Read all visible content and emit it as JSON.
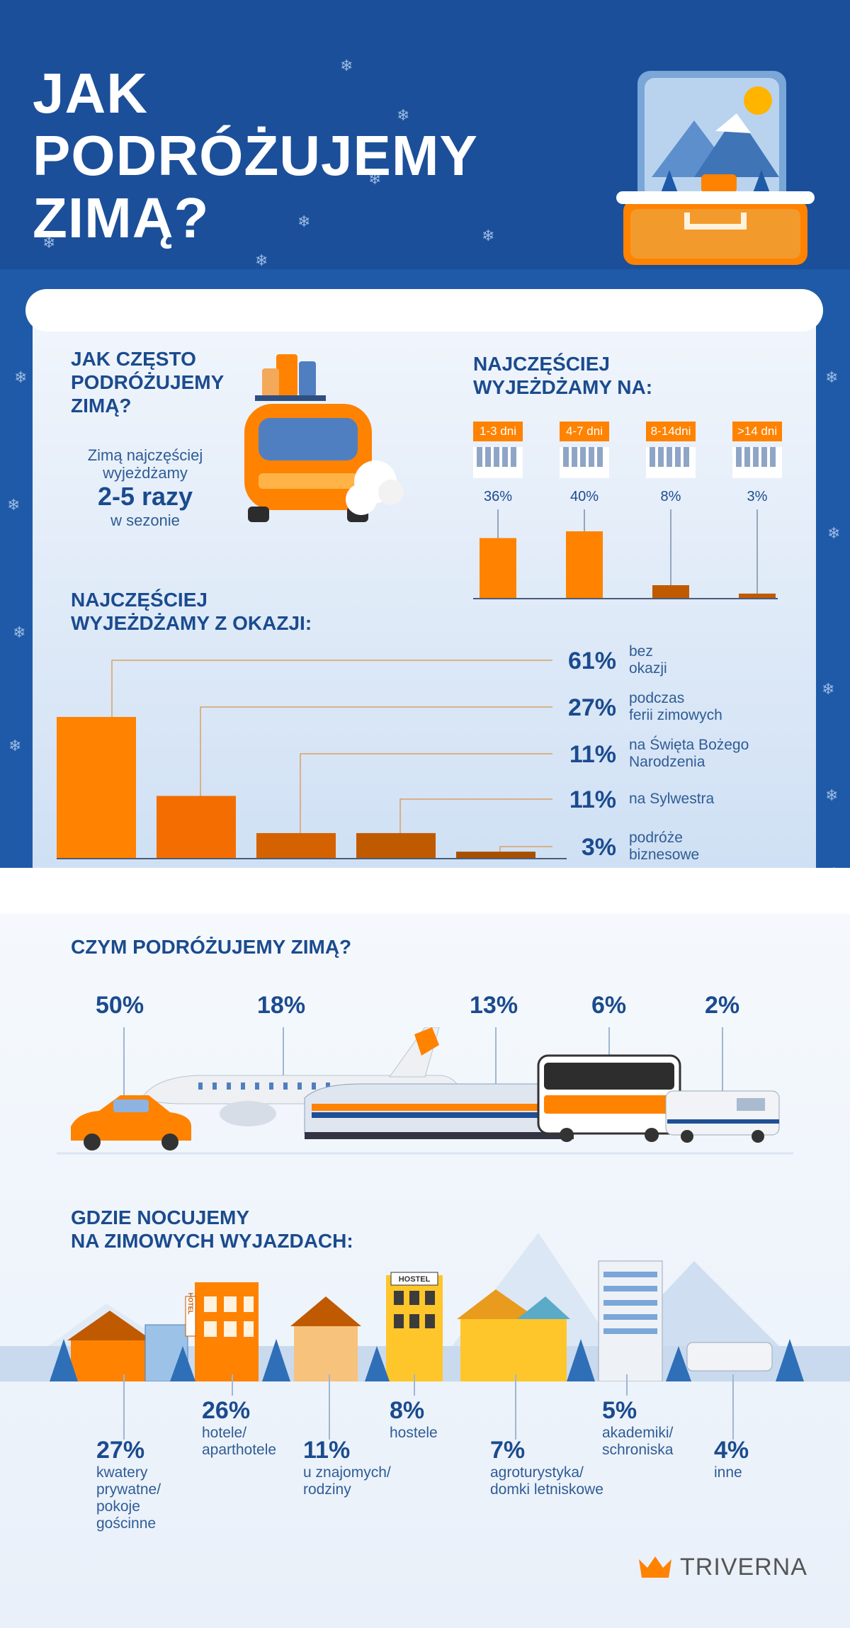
{
  "title": "JAK\nPODRÓŻUJEMY\nZIMĄ?",
  "frequency": {
    "heading": "JAK CZĘSTO\nPODRÓŻUJEMY\nZIMĄ?",
    "line1": "Zimą najczęściej",
    "line2": "wyjeżdżamy",
    "value": "2-5 razy",
    "line3": "w sezonie"
  },
  "duration": {
    "heading": "NAJCZĘŚCIEJ\nWYJEŻDŻAMY NA:",
    "items": [
      {
        "label": "1-3 dni",
        "pct": "36%",
        "value": 36
      },
      {
        "label": "4-7 dni",
        "pct": "40%",
        "value": 40
      },
      {
        "label": "8-14dni",
        "pct": "8%",
        "value": 8
      },
      {
        "label": ">14 dni",
        "pct": "3%",
        "value": 3
      }
    ]
  },
  "occasion": {
    "heading": "NAJCZĘŚCIEJ\nWYJEŻDŻAMY Z OKAZJI:",
    "items": [
      {
        "pct": "61%",
        "value": 61,
        "label": "bez\nokazji"
      },
      {
        "pct": "27%",
        "value": 27,
        "label": "podczas\nferii zimowych"
      },
      {
        "pct": "11%",
        "value": 11,
        "label": "na Święta Bożego\nNarodzenia"
      },
      {
        "pct": "11%",
        "value": 11,
        "label": "na Sylwestra"
      },
      {
        "pct": "3%",
        "value": 3,
        "label": "podróże\nbiznesowe"
      }
    ]
  },
  "transport": {
    "heading": "CZYM PODRÓŻUJEMY ZIMĄ?",
    "items": [
      {
        "pct": "50%",
        "icon": "car-icon"
      },
      {
        "pct": "18%",
        "icon": "plane-icon"
      },
      {
        "pct": "13%",
        "icon": "train-icon"
      },
      {
        "pct": "6%",
        "icon": "bus-icon"
      },
      {
        "pct": "2%",
        "icon": "camper-icon"
      }
    ]
  },
  "accommodation": {
    "heading": "GDZIE NOCUJEMY\nNA ZIMOWYCH WYJAZDACH:",
    "hotel_sign": "HOTEL",
    "hostel_sign": "HOSTEL",
    "items": [
      {
        "pct": "27%",
        "label": "kwatery\nprywatne/\npokoje\ngościnne"
      },
      {
        "pct": "26%",
        "label": "hotele/\naparthotele"
      },
      {
        "pct": "11%",
        "label": "u znajomych/\nrodziny"
      },
      {
        "pct": "8%",
        "label": "hostele"
      },
      {
        "pct": "7%",
        "label": "agroturystyka/\ndomki letniskowe"
      },
      {
        "pct": "5%",
        "label": "akademiki/\nschroniska"
      },
      {
        "pct": "4%",
        "label": "inne"
      }
    ]
  },
  "brand": "TRIVERNA",
  "colors": {
    "orange": "#ff8200",
    "dark_orange": "#c05a00",
    "navy": "#1b4b8e",
    "blue": "#1f5aa8"
  }
}
